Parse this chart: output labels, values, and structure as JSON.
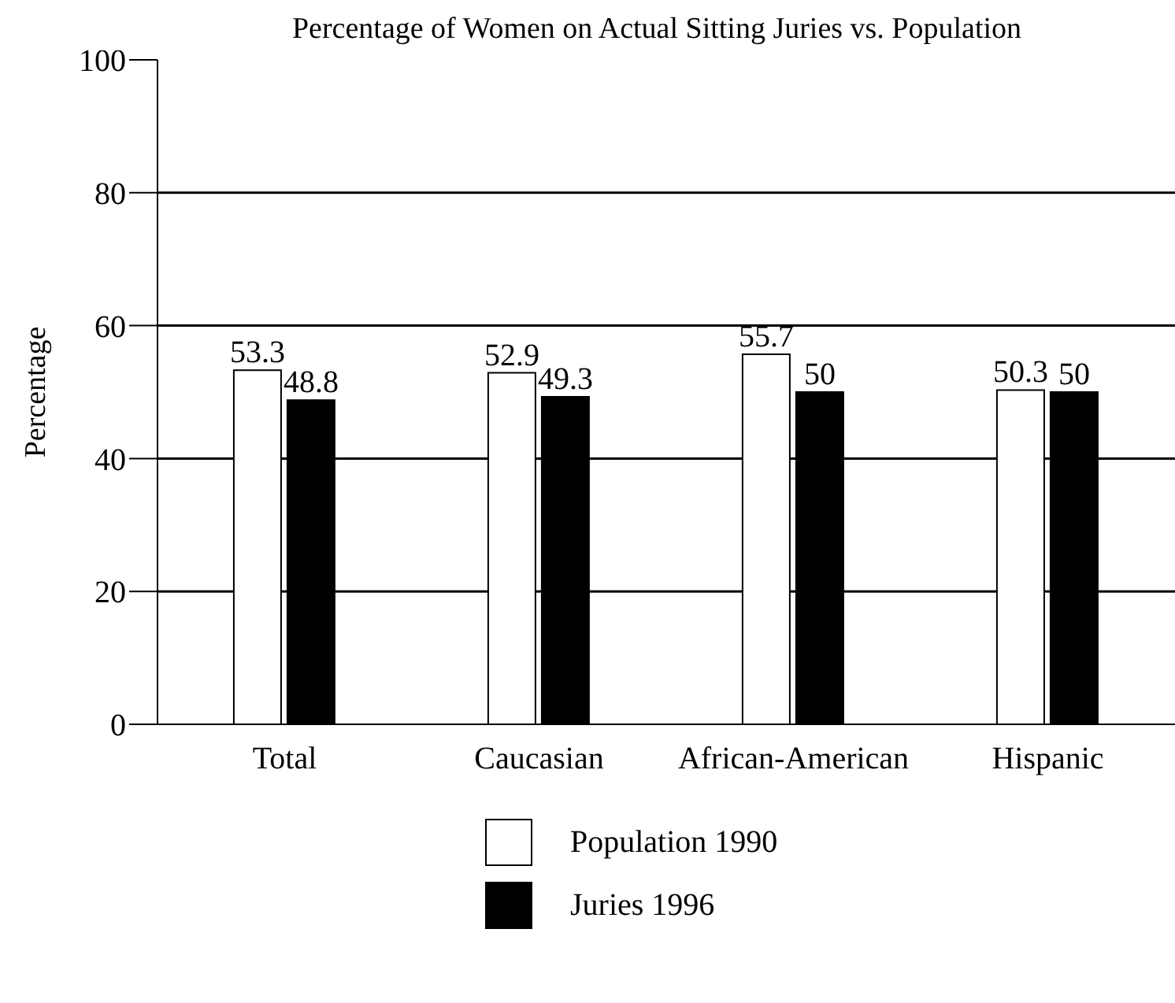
{
  "chart_data": {
    "type": "bar",
    "title": "Percentage of Women on Actual Sitting Juries vs. Population",
    "ylabel": "Percentage",
    "categories": [
      "Total",
      "Caucasian",
      "African-American",
      "Hispanic"
    ],
    "series": [
      {
        "name": "Population 1990",
        "color": "#ffffff",
        "values": [
          53.3,
          52.9,
          55.7,
          50.3
        ]
      },
      {
        "name": "Juries 1996",
        "color": "#000000",
        "values": [
          48.8,
          49.3,
          50,
          50
        ]
      }
    ],
    "ylim": [
      0,
      100
    ],
    "yticks": [
      0,
      20,
      40,
      60,
      80,
      100
    ],
    "grid": "y",
    "legend": "bottom",
    "data_labels": true
  }
}
